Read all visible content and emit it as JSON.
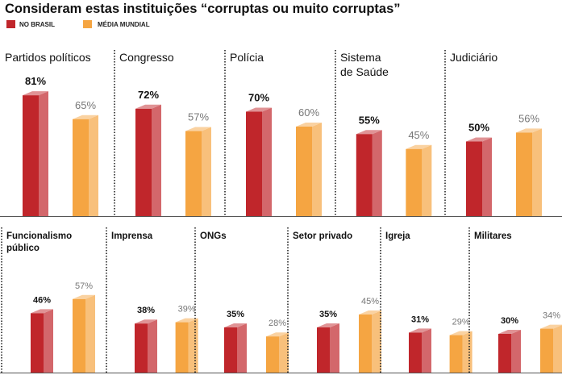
{
  "chart_data": {
    "type": "bar",
    "title": "Consideram estas instituições “corruptas ou muito corruptas”",
    "legend": {
      "placement": "top-left"
    },
    "series": [
      {
        "name": "NO BRASIL",
        "color": "#c0262b",
        "values": [
          81,
          72,
          70,
          55,
          50,
          46,
          38,
          35,
          35,
          31,
          30
        ],
        "labels": [
          "81%",
          "72%",
          "70%",
          "55%",
          "50%",
          "46%",
          "38%",
          "35%",
          "35%",
          "31%",
          "30%"
        ]
      },
      {
        "name": "MÉDIA MUNDIAL",
        "color": "#f5a542",
        "values": [
          65,
          57,
          60,
          45,
          56,
          57,
          39,
          28,
          45,
          29,
          34
        ],
        "labels": [
          "65%",
          "57%",
          "60%",
          "45%",
          "56%",
          "57%",
          "39%",
          "28%",
          "45%",
          "29%",
          "34%"
        ]
      }
    ],
    "categories": [
      [
        "Partidos políticos"
      ],
      [
        "Congresso"
      ],
      [
        "Polícia"
      ],
      [
        "Sistema",
        "de Saúde"
      ],
      [
        "Judiciário"
      ],
      [
        "Funcionalismo",
        "público"
      ],
      [
        "Imprensa"
      ],
      [
        "ONGs"
      ],
      [
        "Setor privado"
      ],
      [
        "Igreja"
      ],
      [
        "Militares"
      ]
    ],
    "ylim": [
      0,
      100
    ],
    "grid": false
  }
}
